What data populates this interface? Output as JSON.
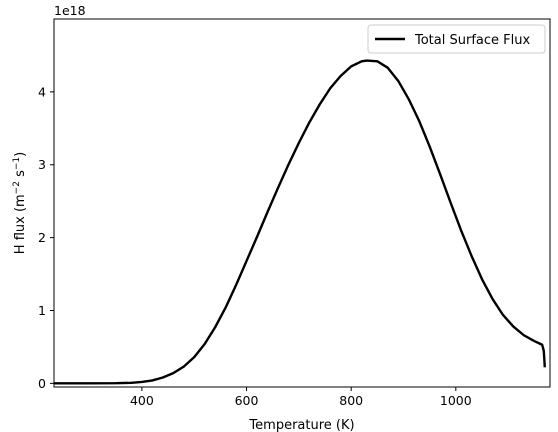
{
  "chart_data": {
    "type": "line",
    "xlabel": "Temperature (K)",
    "ylabel_main": "H flux (m",
    "ylabel_exp1": "−2",
    "ylabel_mid": " s",
    "ylabel_exp2": "−1",
    "ylabel_end": ")",
    "y_offset_label": "1e18",
    "xlim": [
      232,
      1180
    ],
    "ylim": [
      -0.05,
      5.0
    ],
    "x_ticks": [
      400,
      600,
      800,
      1000
    ],
    "x_tick_labels": [
      "400",
      "600",
      "800",
      "1000"
    ],
    "y_ticks": [
      0,
      1,
      2,
      3,
      4
    ],
    "y_tick_labels": [
      "0",
      "1",
      "2",
      "3",
      "4"
    ],
    "grid": false,
    "legend_position": "top-right",
    "series": [
      {
        "name": "Total Surface Flux",
        "color": "#000000",
        "x": [
          232,
          300,
          350,
          380,
          400,
          420,
          440,
          460,
          480,
          500,
          520,
          540,
          560,
          580,
          600,
          620,
          640,
          660,
          680,
          700,
          720,
          740,
          760,
          780,
          800,
          820,
          830,
          850,
          870,
          890,
          910,
          930,
          950,
          970,
          990,
          1010,
          1030,
          1050,
          1070,
          1090,
          1110,
          1130,
          1150,
          1165,
          1168,
          1169,
          1170
        ],
        "y": [
          0.0,
          0.0,
          0.002,
          0.008,
          0.02,
          0.04,
          0.08,
          0.14,
          0.23,
          0.36,
          0.54,
          0.77,
          1.04,
          1.35,
          1.68,
          2.01,
          2.35,
          2.68,
          3.0,
          3.3,
          3.58,
          3.83,
          4.05,
          4.22,
          4.35,
          4.42,
          4.43,
          4.42,
          4.33,
          4.15,
          3.9,
          3.6,
          3.25,
          2.87,
          2.48,
          2.1,
          1.75,
          1.43,
          1.16,
          0.94,
          0.78,
          0.66,
          0.58,
          0.53,
          0.45,
          0.35,
          0.22
        ]
      }
    ]
  }
}
